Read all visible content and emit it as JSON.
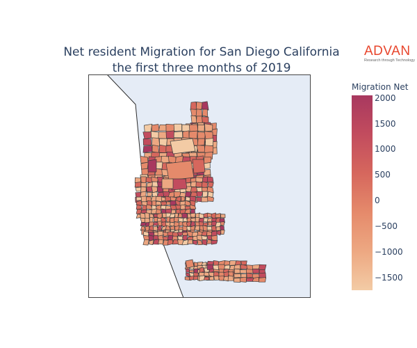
{
  "chart": {
    "title_line1": "Net resident Migration for San Diego California",
    "title_line2": "the first three months of 2019"
  },
  "logo": {
    "brand": "ADVAN",
    "tagline": "Research through Technology",
    "color": "#e8452c"
  },
  "colorbar": {
    "title": "Migration Net",
    "min": -1750,
    "max": 2050,
    "ticks": [
      {
        "value": 2000,
        "label": "2000"
      },
      {
        "value": 1500,
        "label": "1500"
      },
      {
        "value": 1000,
        "label": "1000"
      },
      {
        "value": 500,
        "label": "500"
      },
      {
        "value": 0,
        "label": "0"
      },
      {
        "value": -500,
        "label": "−500"
      },
      {
        "value": -1000,
        "label": "−1000"
      },
      {
        "value": -1500,
        "label": "−1500"
      }
    ],
    "colors": [
      "#f3cba5",
      "#eda882",
      "#e58a6b",
      "#d6675d",
      "#c24c5e",
      "#a8385f"
    ]
  },
  "map": {
    "ocean_color": "#e5ecf6",
    "land_color": "#ffffff",
    "border_color": "#3d3d3d"
  }
}
